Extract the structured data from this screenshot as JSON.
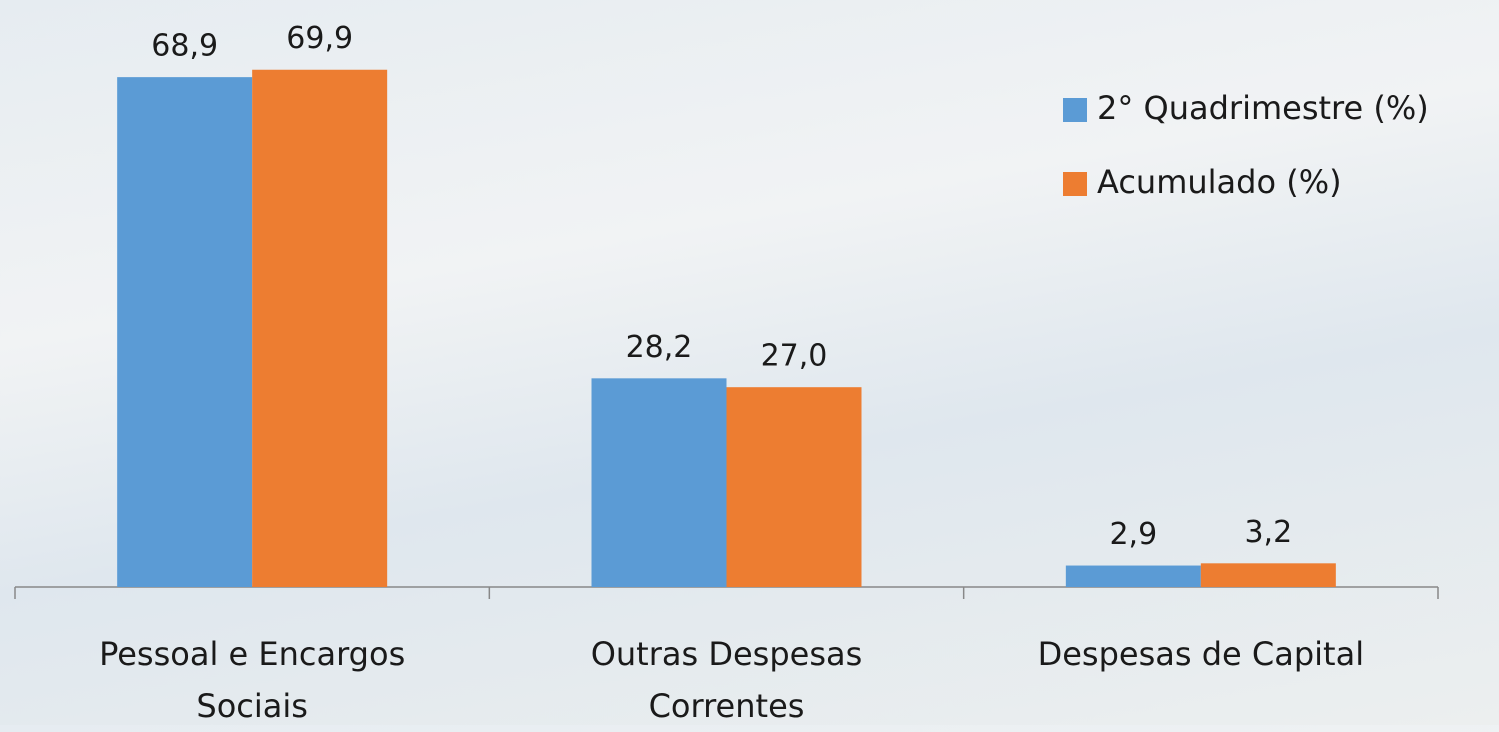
{
  "chart_data": {
    "type": "bar",
    "categories": [
      "Pessoal e Encargos Sociais",
      "Outras Despesas Correntes",
      "Despesas de Capital"
    ],
    "series": [
      {
        "name": "2° Quadrimestre (%)",
        "color": "#5b9bd5",
        "values": [
          68.9,
          28.2,
          2.9
        ],
        "value_labels": [
          "68,9",
          "28,2",
          "2,9"
        ]
      },
      {
        "name": "Acumulado (%)",
        "color": "#ed7d31",
        "values": [
          69.9,
          27.0,
          3.2
        ],
        "value_labels": [
          "69,9",
          "27,0",
          "3,2"
        ]
      }
    ],
    "ylim": [
      0,
      70
    ],
    "legend": "right"
  }
}
